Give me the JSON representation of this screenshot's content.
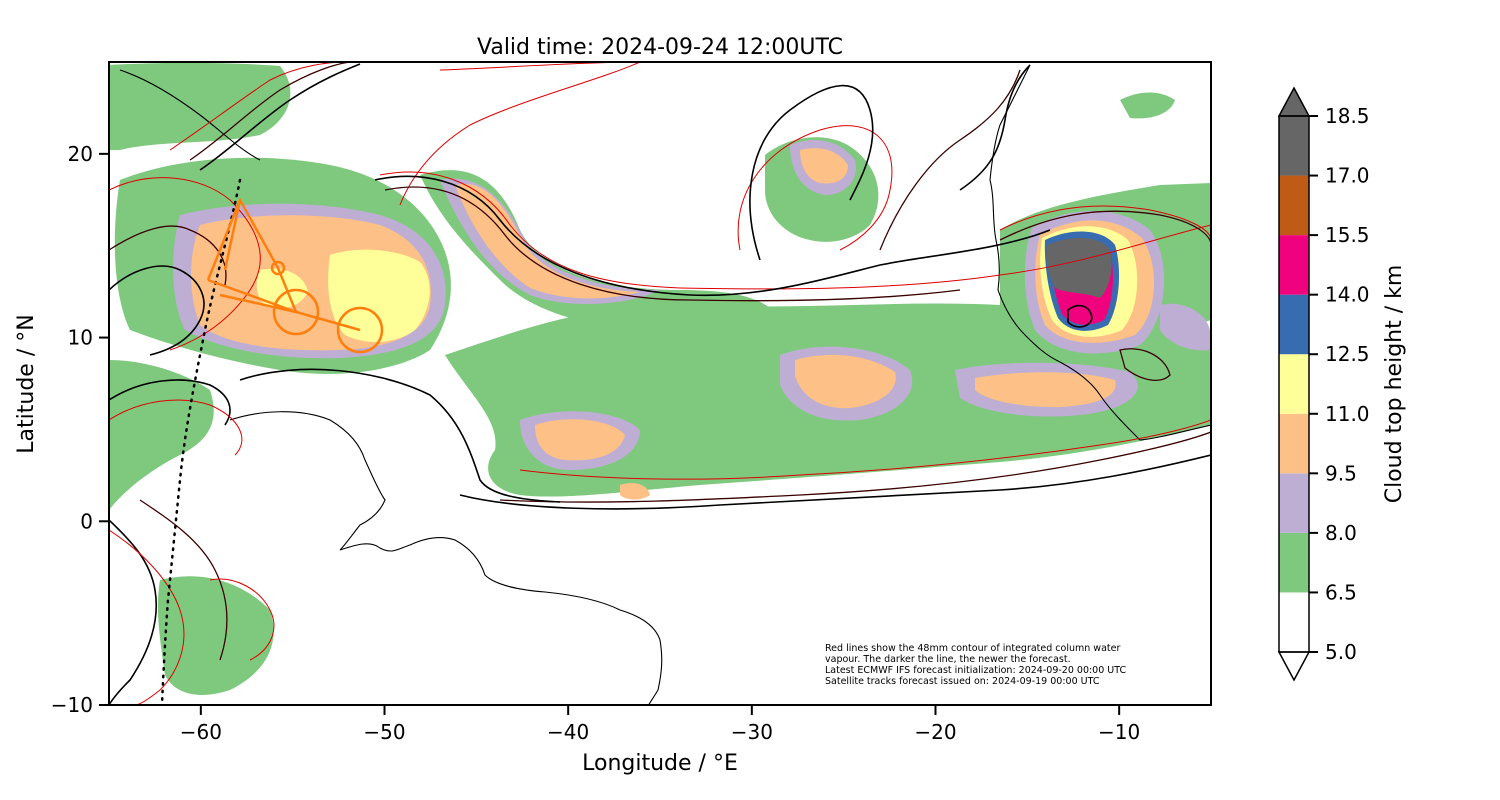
{
  "map": {
    "title": "Valid time: 2024-09-24 12:00UTC",
    "xlabel": "Longitude / °E",
    "ylabel": "Latitude / °N",
    "lon_range": [
      -65,
      -5
    ],
    "lat_range": [
      -10,
      25
    ],
    "x_ticks": [
      {
        "value": -60,
        "label": "−60"
      },
      {
        "value": -50,
        "label": "−50"
      },
      {
        "value": -40,
        "label": "−40"
      },
      {
        "value": -30,
        "label": "−30"
      },
      {
        "value": -20,
        "label": "−20"
      },
      {
        "value": -10,
        "label": "−10"
      }
    ],
    "y_ticks": [
      {
        "value": -10,
        "label": "−10"
      },
      {
        "value": 0,
        "label": "0"
      },
      {
        "value": 10,
        "label": "10"
      },
      {
        "value": 20,
        "label": "20"
      }
    ],
    "note_lines": [
      "Red lines show the 48mm contour of integrated column water",
      "vapour. The darker the line, the newer the forecast.",
      "Latest ECMWF IFS forecast initialization: 2024-09-20 00:00 UTC",
      "Satellite tracks forecast issued on: 2024-09-19 00:00 UTC"
    ]
  },
  "colorbar": {
    "label": "Cloud top height / km",
    "levels": [
      {
        "value": "5.0",
        "color": "#ffffff"
      },
      {
        "value": "6.5",
        "color": "#7fc97f"
      },
      {
        "value": "8.0",
        "color": "#beaed4"
      },
      {
        "value": "9.5",
        "color": "#fdc086"
      },
      {
        "value": "11.0",
        "color": "#ffff99"
      },
      {
        "value": "12.5",
        "color": "#386cb0"
      },
      {
        "value": "14.0",
        "color": "#f0027f"
      },
      {
        "value": "15.5",
        "color": "#bf5b17"
      },
      {
        "value": "17.0",
        "color": "#666666"
      },
      {
        "value": "18.5",
        "color": ""
      }
    ]
  },
  "colors": {
    "cloud_6_5": "#7fc97f",
    "cloud_8_0": "#beaed4",
    "cloud_9_5": "#fdc086",
    "cloud_11_0": "#ffff99",
    "cloud_12_5": "#386cb0",
    "cloud_14_0": "#f0027f",
    "cloud_15_5": "#bf5b17",
    "cloud_17_0": "#666666",
    "contour_red": "#dd0000",
    "contour_dark": "#3a0000",
    "contour_black": "#000000",
    "flight_track": "#ff7f0e"
  }
}
